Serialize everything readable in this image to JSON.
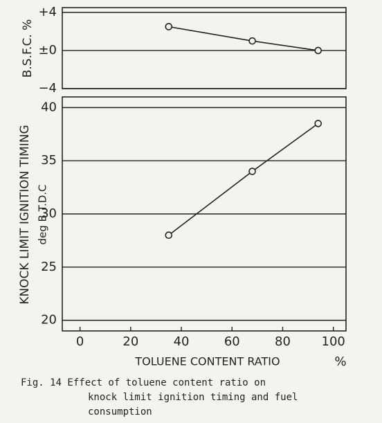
{
  "chart_data": [
    {
      "type": "line",
      "y_label": "B.S.F.C. %",
      "x": [
        35,
        68,
        94
      ],
      "series": [
        {
          "color": "#222222",
          "values": [
            2.5,
            1.0,
            0
          ]
        }
      ],
      "xlim": [
        -7,
        105
      ],
      "ylim": [
        -4,
        4.5
      ],
      "yticks": [
        {
          "value": 4,
          "label": "+4"
        },
        {
          "value": 0,
          "label": "±0"
        },
        {
          "value": -4,
          "label": "−4"
        }
      ],
      "grid": true
    },
    {
      "type": "line",
      "y_label": [
        "KNOCK LIMIT IGNITION TIMING",
        "deg B.T.D.C"
      ],
      "x_label": "TOLUENE CONTENT RATIO",
      "x_unit": "%",
      "x": [
        35,
        68,
        94
      ],
      "series": [
        {
          "color": "#222222",
          "values": [
            28,
            34,
            38.5
          ]
        }
      ],
      "xlim": [
        -7,
        105
      ],
      "ylim": [
        19,
        41
      ],
      "xticks": [
        0,
        20,
        40,
        60,
        80,
        100
      ],
      "yticks": [
        20,
        25,
        30,
        35,
        40
      ],
      "grid": true
    }
  ],
  "caption": [
    "Fig. 14  Effect of toluene content ratio on",
    "knock limit ignition timing and fuel",
    "consumption"
  ]
}
